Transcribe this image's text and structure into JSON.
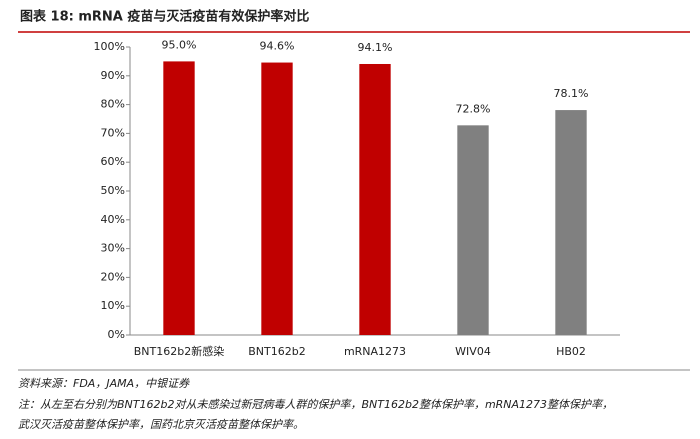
{
  "chart_data": {
    "type": "bar",
    "title": "图表 18:  mRNA 疫苗与灭活疫苗有效保护率对比",
    "categories": [
      "BNT162b2新感染",
      "BNT162b2",
      "mRNA1273",
      "WIV04",
      "HB02"
    ],
    "values": [
      95.0,
      94.6,
      94.1,
      72.8,
      78.1
    ],
    "value_labels": [
      "95.0%",
      "94.6%",
      "94.1%",
      "72.8%",
      "78.1%"
    ],
    "colors": [
      "#c00000",
      "#c00000",
      "#c00000",
      "#808080",
      "#808080"
    ],
    "ylim": [
      0,
      100
    ],
    "yticks": [
      {
        "value": 0,
        "label": "0%"
      },
      {
        "value": 10,
        "label": "10%"
      },
      {
        "value": 20,
        "label": "20%"
      },
      {
        "value": 30,
        "label": "30%"
      },
      {
        "value": 40,
        "label": "40%"
      },
      {
        "value": 50,
        "label": "50%"
      },
      {
        "value": 60,
        "label": "60%"
      },
      {
        "value": 70,
        "label": "70%"
      },
      {
        "value": 80,
        "label": "80%"
      },
      {
        "value": 90,
        "label": "90%"
      },
      {
        "value": 100,
        "label": "100%"
      }
    ],
    "grid": false,
    "source": "资料来源：FDA，JAMA，中银证券",
    "note": "注：从左至右分别为BNT162b2对从未感染过新冠病毒人群的保护率，BNT162b2整体保护率，mRNA1273整体保护率，武汉灭活疫苗整体保护率，国药北京灭活疫苗整体保护率。"
  }
}
